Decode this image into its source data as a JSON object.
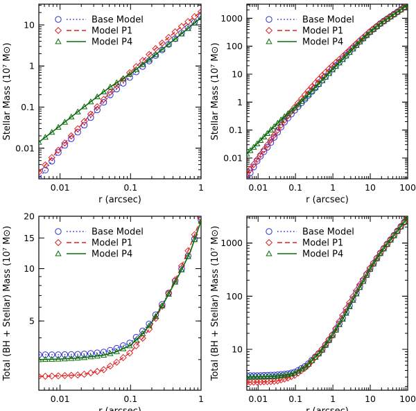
{
  "legend_labels": {
    "base": "Base Model",
    "p1": "Model P1",
    "p4": "Model P4"
  },
  "series_styles": {
    "base": {
      "color": "#2b2bd9",
      "dash": "dotted",
      "marker": "circle"
    },
    "p1": {
      "color": "#e01f1f",
      "dash": "dashed",
      "marker": "diamond"
    },
    "p4": {
      "color": "#0a6b0a",
      "dash": "solid",
      "marker": "triangle"
    }
  },
  "chart_data": [
    {
      "type": "line",
      "xscale": "log",
      "yscale": "log",
      "xlim": [
        0.005,
        1
      ],
      "ylim": [
        0.0018,
        32
      ],
      "xlabel": "r (arcsec)",
      "ylabel": "Stellar Mass",
      "ylabel_unit": "(10⁷ M⊙)",
      "xticks": [
        {
          "v": 0.01,
          "l": "0.01"
        },
        {
          "v": 0.1,
          "l": "0.1"
        },
        {
          "v": 1,
          "l": "1"
        }
      ],
      "yticks": [
        {
          "v": 0.01,
          "l": "0.01"
        },
        {
          "v": 0.1,
          "l": "0.1"
        },
        {
          "v": 1,
          "l": "1"
        },
        {
          "v": 10,
          "l": "10"
        }
      ],
      "legend": "top-left",
      "series": [
        {
          "key": "base",
          "x": [
            0.005,
            0.01,
            0.02,
            0.05,
            0.1,
            0.2,
            0.5,
            1
          ],
          "y": [
            0.0018,
            0.009,
            0.03,
            0.19,
            0.55,
            1.5,
            5.8,
            16
          ]
        },
        {
          "key": "p1",
          "x": [
            0.005,
            0.01,
            0.02,
            0.05,
            0.1,
            0.2,
            0.5,
            1
          ],
          "y": [
            0.0026,
            0.01,
            0.037,
            0.22,
            0.72,
            2.2,
            8.5,
            21
          ]
        },
        {
          "key": "p4",
          "x": [
            0.005,
            0.01,
            0.02,
            0.05,
            0.1,
            0.2,
            0.5,
            1
          ],
          "y": [
            0.014,
            0.035,
            0.09,
            0.3,
            0.65,
            1.6,
            5.6,
            15
          ]
        }
      ]
    },
    {
      "type": "line",
      "xscale": "log",
      "yscale": "log",
      "xlim": [
        0.005,
        100
      ],
      "ylim": [
        0.0018,
        3200
      ],
      "xlabel": "r (arcsec)",
      "ylabel": "Stellar Mass",
      "ylabel_unit": "(10⁷ M⊙)",
      "xticks": [
        {
          "v": 0.01,
          "l": "0.01"
        },
        {
          "v": 0.1,
          "l": "0.1"
        },
        {
          "v": 1,
          "l": "1"
        },
        {
          "v": 10,
          "l": "10"
        },
        {
          "v": 100,
          "l": "100"
        }
      ],
      "yticks": [
        {
          "v": 0.01,
          "l": "0.01"
        },
        {
          "v": 0.1,
          "l": "0.1"
        },
        {
          "v": 1,
          "l": "1"
        },
        {
          "v": 10,
          "l": "10"
        },
        {
          "v": 100,
          "l": "100"
        },
        {
          "v": 1000,
          "l": "1000"
        }
      ],
      "legend": "top-center",
      "series": [
        {
          "key": "base",
          "x": [
            0.005,
            0.01,
            0.02,
            0.05,
            0.1,
            0.2,
            0.5,
            1,
            2,
            5,
            10,
            20,
            50,
            100
          ],
          "y": [
            0.0018,
            0.009,
            0.03,
            0.19,
            0.55,
            1.5,
            5.8,
            16,
            40,
            140,
            330,
            700,
            1600,
            3000
          ]
        },
        {
          "key": "p1",
          "x": [
            0.005,
            0.01,
            0.02,
            0.05,
            0.1,
            0.2,
            0.5,
            1,
            2,
            5,
            10,
            20,
            50,
            100
          ],
          "y": [
            0.0026,
            0.01,
            0.037,
            0.22,
            0.72,
            2.2,
            8.5,
            21,
            48,
            155,
            345,
            710,
            1600,
            3000
          ]
        },
        {
          "key": "p4",
          "x": [
            0.005,
            0.01,
            0.02,
            0.05,
            0.1,
            0.2,
            0.5,
            1,
            2,
            5,
            10,
            20,
            50,
            100
          ],
          "y": [
            0.014,
            0.035,
            0.09,
            0.3,
            0.65,
            1.6,
            5.6,
            15,
            38,
            135,
            325,
            690,
            1580,
            3000
          ]
        }
      ]
    },
    {
      "type": "line",
      "xscale": "log",
      "yscale": "log",
      "xlim": [
        0.005,
        1
      ],
      "ylim": [
        2.0,
        20
      ],
      "xlabel": "r (arcsec)",
      "ylabel": "Total (BH + Stellar) Mass",
      "ylabel_unit": "(10⁷ M⊙)",
      "xticks": [
        {
          "v": 0.01,
          "l": "0.01"
        },
        {
          "v": 0.1,
          "l": "0.1"
        },
        {
          "v": 1,
          "l": "1"
        }
      ],
      "yticks": [
        {
          "v": 5,
          "l": "5"
        },
        {
          "v": 10,
          "l": "10"
        },
        {
          "v": 15,
          "l": "15"
        },
        {
          "v": 20,
          "l": "20"
        }
      ],
      "legend": "top-left",
      "series": [
        {
          "key": "base",
          "x": [
            0.005,
            0.01,
            0.02,
            0.04,
            0.06,
            0.1,
            0.15,
            0.2,
            0.3,
            0.5,
            0.7,
            1
          ],
          "y": [
            3.2,
            3.2,
            3.22,
            3.3,
            3.45,
            3.75,
            4.4,
            5.0,
            6.5,
            9.5,
            12.5,
            19
          ]
        },
        {
          "key": "p1",
          "x": [
            0.005,
            0.01,
            0.02,
            0.04,
            0.06,
            0.1,
            0.15,
            0.2,
            0.3,
            0.5,
            0.7,
            1
          ],
          "y": [
            2.4,
            2.42,
            2.45,
            2.6,
            2.85,
            3.3,
            4.0,
            4.7,
            6.4,
            9.8,
            13.5,
            19.5
          ]
        },
        {
          "key": "p4",
          "x": [
            0.005,
            0.01,
            0.02,
            0.04,
            0.06,
            0.1,
            0.15,
            0.2,
            0.3,
            0.5,
            0.7,
            1
          ],
          "y": [
            3.0,
            3.02,
            3.07,
            3.17,
            3.3,
            3.62,
            4.25,
            4.9,
            6.4,
            9.4,
            12.4,
            18.8
          ]
        }
      ]
    },
    {
      "type": "line",
      "xscale": "log",
      "yscale": "log",
      "xlim": [
        0.005,
        100
      ],
      "ylim": [
        1.7,
        3200
      ],
      "xlabel": "r (arcsec)",
      "ylabel": "Total (BH + Stellar) Mass",
      "ylabel_unit": "(10⁷ M⊙)",
      "xticks": [
        {
          "v": 0.01,
          "l": "0.01"
        },
        {
          "v": 0.1,
          "l": "0.1"
        },
        {
          "v": 1,
          "l": "1"
        },
        {
          "v": 10,
          "l": "10"
        },
        {
          "v": 100,
          "l": "100"
        }
      ],
      "yticks": [
        {
          "v": 10,
          "l": "10"
        },
        {
          "v": 100,
          "l": "100"
        },
        {
          "v": 1000,
          "l": "1000"
        }
      ],
      "legend": "top-center",
      "series": [
        {
          "key": "base",
          "x": [
            0.005,
            0.01,
            0.03,
            0.06,
            0.1,
            0.2,
            0.5,
            1,
            2,
            5,
            10,
            20,
            50,
            100
          ],
          "y": [
            3.2,
            3.2,
            3.3,
            3.45,
            3.75,
            5.0,
            9.5,
            19,
            43,
            143,
            333,
            703,
            1603,
            3003
          ]
        },
        {
          "key": "p1",
          "x": [
            0.005,
            0.01,
            0.03,
            0.06,
            0.1,
            0.2,
            0.5,
            1,
            2,
            5,
            10,
            20,
            50,
            100
          ],
          "y": [
            2.4,
            2.42,
            2.5,
            2.85,
            3.3,
            4.7,
            9.8,
            19.5,
            50,
            157,
            347,
            712,
            1602,
            3002
          ]
        },
        {
          "key": "p4",
          "x": [
            0.005,
            0.01,
            0.03,
            0.06,
            0.1,
            0.2,
            0.5,
            1,
            2,
            5,
            10,
            20,
            50,
            100
          ],
          "y": [
            3.0,
            3.02,
            3.1,
            3.3,
            3.62,
            4.9,
            9.4,
            18.8,
            41,
            138,
            328,
            693,
            1583,
            3003
          ]
        }
      ]
    }
  ]
}
